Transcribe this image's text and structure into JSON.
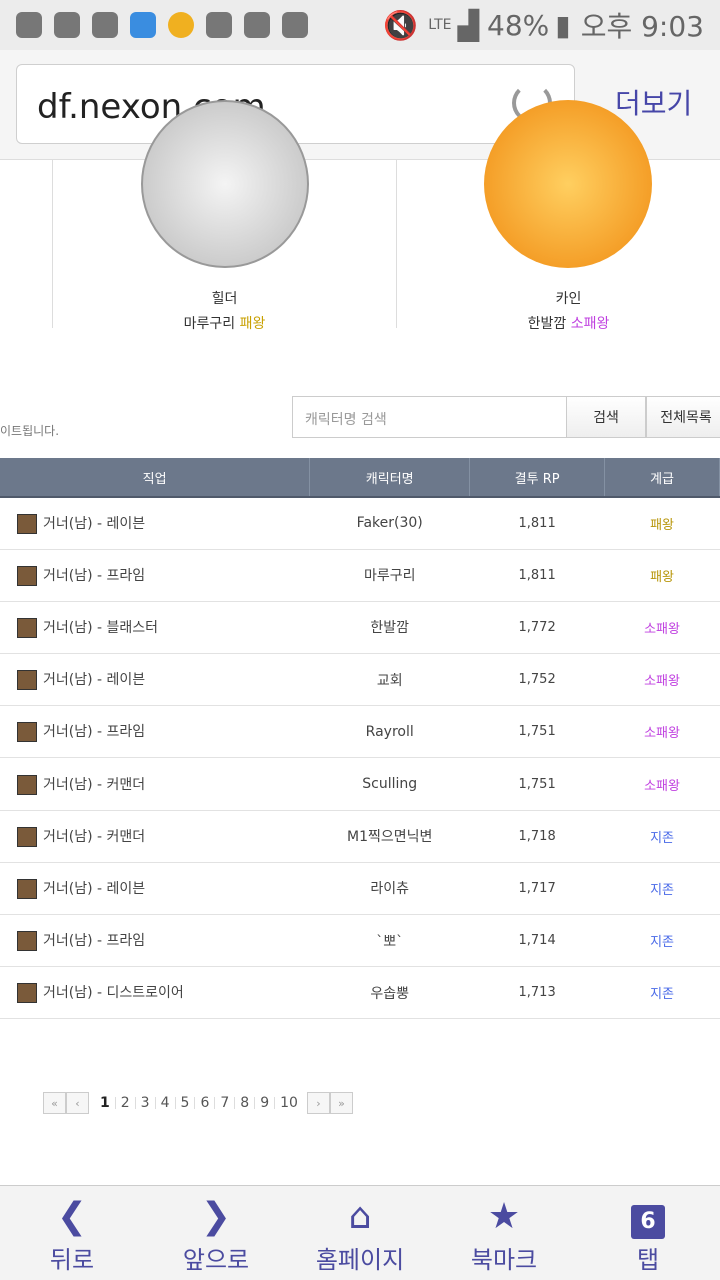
{
  "status_bar": {
    "network": "LTE",
    "battery": "48%",
    "time": "오후 9:03"
  },
  "browser": {
    "url": "df.nexon.com",
    "more_label": "더보기"
  },
  "profiles": [
    {
      "job": "힐더",
      "name": "마루구리",
      "grade": "패왕",
      "grade_color": "#c8a000"
    },
    {
      "job": "카인",
      "name": "한발깜",
      "grade": "소패왕",
      "grade_color": "#c040e0"
    }
  ],
  "note": "이트됩니다.",
  "search": {
    "placeholder": "캐릭터명 검색",
    "search_label": "검색",
    "all_label": "전체목록"
  },
  "table": {
    "headers": [
      "직업",
      "캐릭터명",
      "결투 RP",
      "계급"
    ],
    "rows": [
      {
        "job": "거너(남) - 레이븐",
        "name": "Faker(30)",
        "rp": "1,811",
        "grade": "패왕"
      },
      {
        "job": "거너(남) - 프라임",
        "name": "마루구리",
        "rp": "1,811",
        "grade": "패왕"
      },
      {
        "job": "거너(남) - 블래스터",
        "name": "한발깜",
        "rp": "1,772",
        "grade": "소패왕"
      },
      {
        "job": "거너(남) - 레이븐",
        "name": "교회",
        "rp": "1,752",
        "grade": "소패왕"
      },
      {
        "job": "거너(남) - 프라임",
        "name": "Rayroll",
        "rp": "1,751",
        "grade": "소패왕"
      },
      {
        "job": "거너(남) - 커맨더",
        "name": "Sculling",
        "rp": "1,751",
        "grade": "소패왕"
      },
      {
        "job": "거너(남) - 커맨더",
        "name": "M1찍으면닉변",
        "rp": "1,718",
        "grade": "지존"
      },
      {
        "job": "거너(남) - 레이븐",
        "name": "라이츄",
        "rp": "1,717",
        "grade": "지존"
      },
      {
        "job": "거너(남) - 프라임",
        "name": "`뽀`",
        "rp": "1,714",
        "grade": "지존"
      },
      {
        "job": "거너(남) - 디스트로이어",
        "name": "우솝뿡",
        "rp": "1,713",
        "grade": "지존"
      }
    ]
  },
  "grade_colors": {
    "패왕": "#b8960a",
    "소패왕": "#c040e0",
    "지존": "#4a6ae8"
  },
  "pager": {
    "first": "«",
    "prev": "‹",
    "pages": [
      "1",
      "2",
      "3",
      "4",
      "5",
      "6",
      "7",
      "8",
      "9",
      "10"
    ],
    "current": "1",
    "next": "›",
    "last": "»"
  },
  "nav": {
    "back": "뒤로",
    "forward": "앞으로",
    "home": "홈페이지",
    "bookmark": "북마크",
    "tabs": "탭",
    "tab_count": "6"
  }
}
